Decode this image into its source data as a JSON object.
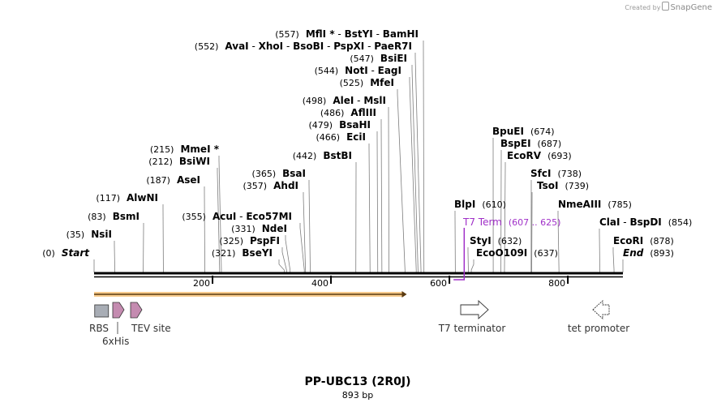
{
  "watermark": {
    "prefix": "Created by",
    "brand": "SnapGene"
  },
  "map": {
    "title": "PP-UBC13 (2R0J)",
    "length_label": "893 bp",
    "bp_start": 0,
    "bp_end": 893,
    "ticks": [
      {
        "bp": 200,
        "label": "200"
      },
      {
        "bp": 400,
        "label": "400"
      },
      {
        "bp": 600,
        "label": "600"
      },
      {
        "bp": 800,
        "label": "800"
      }
    ]
  },
  "sites": [
    {
      "id": "start",
      "group": "left",
      "parts": [
        {
          "name": "Start",
          "italic": true
        }
      ],
      "pos_text": "(0)",
      "bp": 0
    },
    {
      "id": "nsii",
      "group": "left",
      "parts": [
        {
          "name": "NsiI"
        }
      ],
      "pos_text": "(35)",
      "bp": 35
    },
    {
      "id": "bsmi",
      "group": "left",
      "parts": [
        {
          "name": "BsmI"
        }
      ],
      "pos_text": "(83)",
      "bp": 83
    },
    {
      "id": "alwni",
      "group": "left",
      "parts": [
        {
          "name": "AlwNI"
        }
      ],
      "pos_text": "(117)",
      "bp": 117
    },
    {
      "id": "asei",
      "group": "left",
      "parts": [
        {
          "name": "AseI"
        }
      ],
      "pos_text": "(187)",
      "bp": 187
    },
    {
      "id": "bsiwi",
      "group": "left",
      "parts": [
        {
          "name": "BsiWI"
        }
      ],
      "pos_text": "(212)",
      "bp": 212
    },
    {
      "id": "mmei",
      "group": "left",
      "parts": [
        {
          "name": "MmeI *"
        }
      ],
      "pos_text": "(215)",
      "bp": 215
    },
    {
      "id": "bseyi",
      "group": "left",
      "parts": [
        {
          "name": "BseYI"
        }
      ],
      "pos_text": "(321)",
      "bp": 321
    },
    {
      "id": "pspfi",
      "group": "left",
      "parts": [
        {
          "name": "PspFI"
        }
      ],
      "pos_text": "(325)",
      "bp": 325
    },
    {
      "id": "ndei",
      "group": "left",
      "parts": [
        {
          "name": "NdeI"
        }
      ],
      "pos_text": "(331)",
      "bp": 331
    },
    {
      "id": "acui",
      "group": "left",
      "parts": [
        {
          "name": "AcuI"
        },
        {
          "name": "Eco57MI"
        }
      ],
      "pos_text": "(355)",
      "bp": 355
    },
    {
      "id": "ahdi",
      "group": "left",
      "parts": [
        {
          "name": "AhdI"
        }
      ],
      "pos_text": "(357)",
      "bp": 357
    },
    {
      "id": "bsai",
      "group": "left",
      "parts": [
        {
          "name": "BsaI"
        }
      ],
      "pos_text": "(365)",
      "bp": 365
    },
    {
      "id": "bstbi",
      "group": "left",
      "parts": [
        {
          "name": "BstBI"
        }
      ],
      "pos_text": "(442)",
      "bp": 442
    },
    {
      "id": "ecii",
      "group": "left",
      "parts": [
        {
          "name": "EciI"
        }
      ],
      "pos_text": "(466)",
      "bp": 466
    },
    {
      "id": "bsahi",
      "group": "left",
      "parts": [
        {
          "name": "BsaHI"
        }
      ],
      "pos_text": "(479)",
      "bp": 479
    },
    {
      "id": "afliii",
      "group": "left",
      "parts": [
        {
          "name": "AflIII"
        }
      ],
      "pos_text": "(486)",
      "bp": 486
    },
    {
      "id": "alei",
      "group": "left",
      "parts": [
        {
          "name": "AleI"
        },
        {
          "name": "MslI"
        }
      ],
      "pos_text": "(498)",
      "bp": 498
    },
    {
      "id": "mfei",
      "group": "left",
      "parts": [
        {
          "name": "MfeI"
        }
      ],
      "pos_text": "(525)",
      "bp": 525
    },
    {
      "id": "noti",
      "group": "left",
      "parts": [
        {
          "name": "NotI"
        },
        {
          "name": "EagI"
        }
      ],
      "pos_text": "(544)",
      "bp": 544
    },
    {
      "id": "bsiei",
      "group": "left",
      "parts": [
        {
          "name": "BsiEI"
        }
      ],
      "pos_text": "(547)",
      "bp": 547
    },
    {
      "id": "avai",
      "group": "left",
      "parts": [
        {
          "name": "AvaI"
        },
        {
          "name": "XhoI"
        },
        {
          "name": "BsoBI"
        },
        {
          "name": "PspXI"
        },
        {
          "name": "PaeR7I"
        }
      ],
      "pos_text": "(552)",
      "bp": 552
    },
    {
      "id": "mlui",
      "group": "left",
      "parts": [
        {
          "name": "MflI *"
        },
        {
          "name": "BstYI"
        },
        {
          "name": "BamHI"
        }
      ],
      "pos_text": "(557)",
      "bp": 557
    },
    {
      "id": "blpi",
      "group": "right",
      "parts": [
        {
          "name": "BlpI"
        }
      ],
      "pos_text": "(610)",
      "bp": 610
    },
    {
      "id": "styi",
      "group": "right",
      "parts": [
        {
          "name": "StyI"
        }
      ],
      "pos_text": "(632)",
      "bp": 632
    },
    {
      "id": "eco0109i",
      "group": "right",
      "parts": [
        {
          "name": "EcoO109I"
        }
      ],
      "pos_text": "(637)",
      "bp": 637
    },
    {
      "id": "bpuei",
      "group": "right",
      "parts": [
        {
          "name": "BpuEI"
        }
      ],
      "pos_text": "(674)",
      "bp": 674
    },
    {
      "id": "bspei",
      "group": "right",
      "parts": [
        {
          "name": "BspEI"
        }
      ],
      "pos_text": "(687)",
      "bp": 687
    },
    {
      "id": "ecorv",
      "group": "right",
      "parts": [
        {
          "name": "EcoRV"
        }
      ],
      "pos_text": "(693)",
      "bp": 693
    },
    {
      "id": "sfci",
      "group": "right",
      "parts": [
        {
          "name": "SfcI"
        }
      ],
      "pos_text": "(738)",
      "bp": 738
    },
    {
      "id": "tsoi",
      "group": "right",
      "parts": [
        {
          "name": "TsoI"
        }
      ],
      "pos_text": "(739)",
      "bp": 739
    },
    {
      "id": "nmeaiii",
      "group": "right",
      "parts": [
        {
          "name": "NmeAIII"
        }
      ],
      "pos_text": "(785)",
      "bp": 785
    },
    {
      "id": "clai",
      "group": "right",
      "parts": [
        {
          "name": "ClaI"
        },
        {
          "name": "BspDI"
        }
      ],
      "pos_text": "(854)",
      "bp": 854
    },
    {
      "id": "ecori",
      "group": "right",
      "parts": [
        {
          "name": "EcoRI"
        }
      ],
      "pos_text": "(878)",
      "bp": 878
    },
    {
      "id": "end",
      "group": "right",
      "parts": [
        {
          "name": "End",
          "italic": true
        }
      ],
      "pos_text": "(893)",
      "bp": 893
    }
  ],
  "primer": {
    "name": "T7 Term",
    "range_text": "(607 .. 625)",
    "start": 607,
    "end": 625,
    "color": "#a030c8"
  },
  "orf": {
    "start": 0,
    "end": 528,
    "color": "#f0a030"
  },
  "features": [
    {
      "id": "rbs",
      "label": "RBS",
      "bp": 12,
      "type": "box",
      "color": "#a8adb5"
    },
    {
      "id": "his",
      "label": "6xHis",
      "bp": 38,
      "type": "arrow-right",
      "color": "#c48bb0"
    },
    {
      "id": "tev",
      "label": "TEV site",
      "bp": 72,
      "type": "arrow-right",
      "color": "#c48bb0"
    },
    {
      "id": "t7term",
      "label": "T7 terminator",
      "bp": 645,
      "type": "big-arrow-right",
      "color": "#ffffff"
    },
    {
      "id": "tetp",
      "label": "tet promoter",
      "bp": 855,
      "type": "big-arrow-left",
      "color": "#ffffff"
    }
  ]
}
